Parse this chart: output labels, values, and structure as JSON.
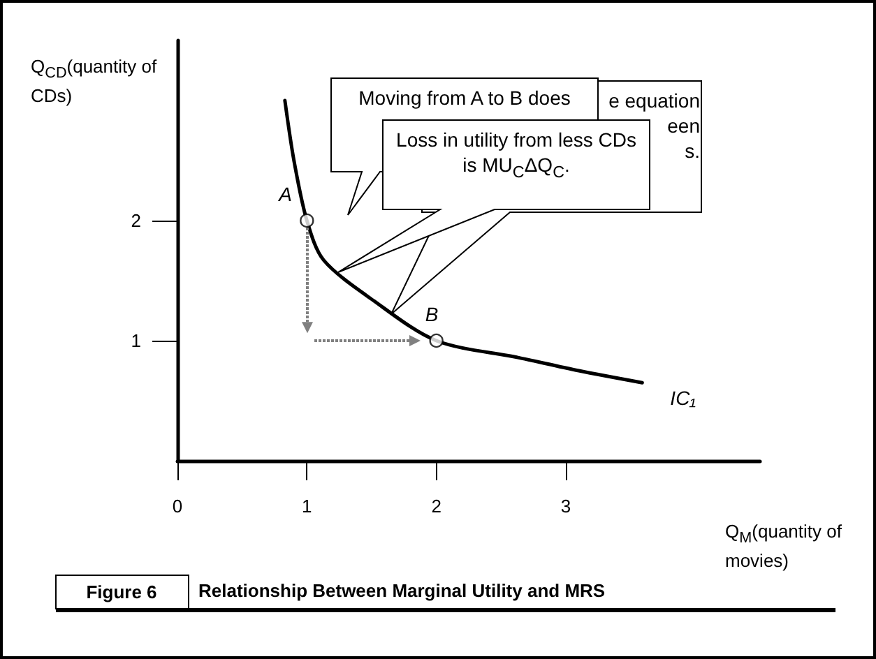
{
  "chart_data": {
    "type": "line",
    "title": "Figure 6",
    "subtitle": "Relationship Between Marginal Utility and MRS",
    "xlabel": "Q$_{M}$(quantity of movies)",
    "ylabel": "Q$_{CD}$(quantity of CDs)",
    "xlim": [
      0,
      4.5
    ],
    "ylim": [
      0,
      3.5
    ],
    "xticks": [
      0,
      1,
      2,
      3
    ],
    "yticks": [
      1,
      2
    ],
    "grid": false,
    "series": [
      {
        "type": "line",
        "color": "#000000",
        "x": [
          0.83,
          0.9,
          1,
          1.13,
          1.52,
          2,
          2.63,
          3.1,
          3.59
        ],
        "values": [
          3.0,
          2.5,
          2,
          1.67,
          1.33,
          1,
          0.86,
          0.75,
          0.65
        ],
        "marker": "none"
      },
      {
        "type": "scatter",
        "color": "#000000",
        "x": [
          1,
          2
        ],
        "values": [
          2,
          1
        ],
        "marker": "circle"
      }
    ],
    "annotations": [
      {
        "text": "A",
        "x": 1,
        "y": 2
      },
      {
        "text": "B",
        "x": 2,
        "y": 1
      },
      {
        "text": "IC₁",
        "x": 3.59,
        "y": 0.65
      },
      "Moving from A to B does",
      "e equation",
      "een",
      "s.",
      "Loss in utility from less CDs is MU$_{C}$ΔQ$_{C}$."
    ]
  }
}
